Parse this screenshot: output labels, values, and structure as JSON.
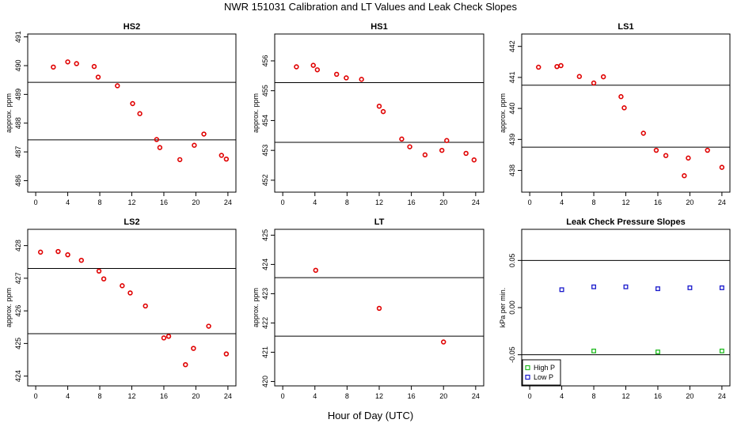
{
  "title": "NWR  151031  Calibration and LT Values and Leak Check Slopes",
  "xlabel_common": "Hour of Day (UTC)",
  "colors": {
    "points": "#e00000",
    "high_p": "#22bb22",
    "low_p": "#1a1acc",
    "lines": "#000000"
  },
  "chart_data": [
    {
      "type": "scatter",
      "title": "HS2",
      "xlabel": "",
      "ylabel": "approx. ppm",
      "xlim": [
        -1,
        25
      ],
      "ylim": [
        485.6,
        491.1
      ],
      "xticks": [
        0,
        4,
        8,
        12,
        16,
        20,
        24
      ],
      "yticks": [
        486,
        487,
        488,
        489,
        490,
        491
      ],
      "hlines": [
        489.42,
        487.42
      ],
      "series": [
        {
          "name": "HS2",
          "x": [
            2.2,
            4,
            5.1,
            7.3,
            7.8,
            10.2,
            12.1,
            13,
            15.1,
            15.5,
            18,
            19.8,
            21,
            23.2,
            23.8
          ],
          "y": [
            489.95,
            490.13,
            490.07,
            489.97,
            489.6,
            489.3,
            488.68,
            488.33,
            487.43,
            487.15,
            486.73,
            487.23,
            487.62,
            486.88,
            486.75
          ]
        }
      ]
    },
    {
      "type": "scatter",
      "title": "HS1",
      "xlabel": "",
      "ylabel": "approx. ppm",
      "xlim": [
        -1,
        25
      ],
      "ylim": [
        451.6,
        456.9
      ],
      "xticks": [
        0,
        4,
        8,
        12,
        16,
        20,
        24
      ],
      "yticks": [
        452,
        453,
        454,
        455,
        456
      ],
      "hlines": [
        455.27,
        453.27
      ],
      "series": [
        {
          "name": "HS1",
          "x": [
            1.7,
            3.8,
            4.3,
            6.7,
            7.9,
            9.8,
            12,
            12.5,
            14.8,
            15.8,
            17.7,
            19.8,
            20.4,
            22.8,
            23.8
          ],
          "y": [
            455.8,
            455.85,
            455.7,
            455.55,
            455.43,
            455.38,
            454.48,
            454.3,
            453.38,
            453.12,
            452.85,
            453.0,
            453.33,
            452.9,
            452.68
          ]
        }
      ]
    },
    {
      "type": "scatter",
      "title": "LS1",
      "xlabel": "",
      "ylabel": "approx. ppm",
      "xlim": [
        -1,
        25
      ],
      "ylim": [
        437.3,
        442.4
      ],
      "xticks": [
        0,
        4,
        8,
        12,
        16,
        20,
        24
      ],
      "yticks": [
        438,
        439,
        440,
        441,
        442
      ],
      "hlines": [
        440.75,
        438.75
      ],
      "series": [
        {
          "name": "LS1",
          "x": [
            1.1,
            3.4,
            3.9,
            6.2,
            8,
            9.2,
            11.4,
            11.8,
            14.2,
            15.8,
            17,
            19.3,
            19.8,
            22.2,
            24
          ],
          "y": [
            441.33,
            441.35,
            441.38,
            441.03,
            440.82,
            441.02,
            440.38,
            440.02,
            439.2,
            438.65,
            438.48,
            437.83,
            438.4,
            438.65,
            438.1
          ]
        }
      ]
    },
    {
      "type": "scatter",
      "title": "LS2",
      "xlabel": "",
      "ylabel": "approx. ppm",
      "xlim": [
        -1,
        25
      ],
      "ylim": [
        423.7,
        428.5
      ],
      "xticks": [
        0,
        4,
        8,
        12,
        16,
        20,
        24
      ],
      "yticks": [
        424,
        425,
        426,
        427,
        428
      ],
      "hlines": [
        427.3,
        425.3
      ],
      "series": [
        {
          "name": "LS2",
          "x": [
            0.6,
            2.8,
            4,
            5.7,
            7.9,
            8.5,
            10.8,
            11.8,
            13.7,
            16,
            16.6,
            18.7,
            19.7,
            21.6,
            23.8
          ],
          "y": [
            427.8,
            427.82,
            427.72,
            427.55,
            427.22,
            426.98,
            426.77,
            426.55,
            426.15,
            425.17,
            425.22,
            424.35,
            424.85,
            425.53,
            424.68
          ]
        }
      ]
    },
    {
      "type": "scatter",
      "title": "LT",
      "xlabel": "",
      "ylabel": "approx. ppm",
      "xlim": [
        -1,
        25
      ],
      "ylim": [
        419.85,
        425.2
      ],
      "xticks": [
        0,
        4,
        8,
        12,
        16,
        20,
        24
      ],
      "yticks": [
        420,
        421,
        422,
        423,
        424,
        425
      ],
      "hlines": [
        423.55,
        421.55
      ],
      "series": [
        {
          "name": "LT",
          "x": [
            4.1,
            12,
            20
          ],
          "y": [
            423.8,
            422.5,
            421.35
          ]
        }
      ]
    },
    {
      "type": "scatter",
      "title": "Leak Check Pressure Slopes",
      "xlabel": "",
      "ylabel": "kPa per min.",
      "xlim": [
        -1,
        25
      ],
      "ylim": [
        -0.083,
        0.083
      ],
      "xticks": [
        0,
        4,
        8,
        12,
        16,
        20,
        24
      ],
      "yticks": [
        -0.05,
        0.0,
        0.05
      ],
      "ytick_labels": [
        "-0.05",
        "0.00",
        "0.05"
      ],
      "hlines": [
        0.05,
        -0.05
      ],
      "legend": {
        "loc": "lower-left",
        "entries": [
          "High P",
          "Low P"
        ]
      },
      "series": [
        {
          "name": "High P",
          "x": [
            8,
            16,
            24
          ],
          "y": [
            -0.046,
            -0.047,
            -0.046
          ]
        },
        {
          "name": "Low P",
          "x": [
            4,
            8,
            12,
            16,
            20,
            24
          ],
          "y": [
            0.019,
            0.022,
            0.022,
            0.02,
            0.021,
            0.021
          ]
        }
      ]
    }
  ]
}
